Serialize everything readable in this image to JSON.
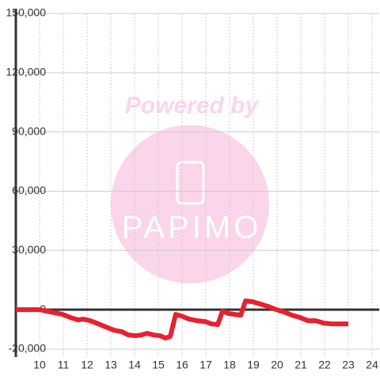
{
  "chart_data": {
    "type": "line",
    "watermark": {
      "line1": "Powered by",
      "line2": "PAPIMO"
    },
    "x": [
      9.0,
      10.0,
      10.3,
      10.63,
      10.97,
      11.3,
      11.63,
      11.83,
      12.13,
      12.47,
      12.8,
      13.13,
      13.47,
      13.73,
      14.03,
      14.3,
      14.53,
      14.8,
      15.07,
      15.3,
      15.5,
      15.73,
      15.97,
      16.3,
      16.63,
      16.97,
      17.23,
      17.5,
      17.7,
      17.97,
      18.23,
      18.47,
      18.67,
      18.97,
      19.3,
      19.63,
      19.97,
      20.3,
      20.63,
      20.97,
      21.3,
      21.63,
      21.97,
      22.3,
      23.0
    ],
    "series": [
      {
        "color": "#e8202f",
        "values": [
          0,
          0,
          -800,
          -1600,
          -2400,
          -4000,
          -5200,
          -4800,
          -5600,
          -7200,
          -8800,
          -10400,
          -11200,
          -12800,
          -13200,
          -12800,
          -12000,
          -12800,
          -13200,
          -14400,
          -13600,
          -2400,
          -3200,
          -4800,
          -5600,
          -6000,
          -7200,
          -7600,
          -800,
          -2000,
          -2400,
          -2800,
          4400,
          4000,
          2800,
          1600,
          0,
          -1200,
          -2800,
          -4000,
          -5600,
          -5600,
          -6800,
          -7200,
          -7200
        ]
      }
    ],
    "xlim": [
      9,
      24.3
    ],
    "xticks": [
      10,
      11,
      12,
      13,
      14,
      15,
      16,
      17,
      18,
      19,
      20,
      21,
      22,
      23,
      24
    ],
    "ylim": [
      -20000,
      150000
    ],
    "yticks": [
      {
        "value": -20000,
        "label": "-20,000"
      },
      0,
      {
        "value": 30000,
        "label": "30,000"
      },
      {
        "value": 60000,
        "label": "60,000"
      },
      {
        "value": 90000,
        "label": "90,000"
      },
      {
        "value": 120000,
        "label": "120,000"
      },
      {
        "value": 150000,
        "label": "150,000"
      }
    ],
    "grid": true
  }
}
